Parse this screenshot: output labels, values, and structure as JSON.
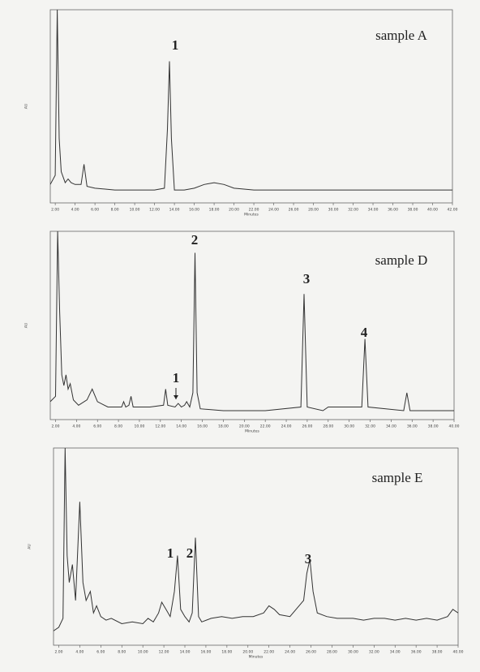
{
  "chart_data": [
    {
      "type": "line",
      "title": "sample A",
      "xlabel": "Minutes",
      "ylabel": "AU",
      "color": "#333333",
      "xlim": [
        1.5,
        42
      ],
      "ylim": [
        -0.05,
        1.0
      ],
      "xticks": [
        {
          "value": 2,
          "label": "2.00"
        },
        {
          "value": 4,
          "label": "4.00"
        },
        {
          "value": 6,
          "label": "6.00"
        },
        {
          "value": 8,
          "label": "8.00"
        },
        {
          "value": 10,
          "label": "10.00"
        },
        {
          "value": 12,
          "label": "12.00"
        },
        {
          "value": 14,
          "label": "14.00"
        },
        {
          "value": 16,
          "label": "16.00"
        },
        {
          "value": 18,
          "label": "18.00"
        },
        {
          "value": 20,
          "label": "20.00"
        },
        {
          "value": 22,
          "label": "22.00"
        },
        {
          "value": 24,
          "label": "24.00"
        },
        {
          "value": 26,
          "label": "26.00"
        },
        {
          "value": 28,
          "label": "28.00"
        },
        {
          "value": 30,
          "label": "30.00"
        },
        {
          "value": 32,
          "label": "32.00"
        },
        {
          "value": 34,
          "label": "34.00"
        },
        {
          "value": 36,
          "label": "36.00"
        },
        {
          "value": 38,
          "label": "38.00"
        },
        {
          "value": 40,
          "label": "40.00"
        },
        {
          "value": 42,
          "label": "42.00"
        }
      ],
      "x": [
        1.5,
        2.0,
        2.2,
        2.4,
        2.6,
        3.0,
        3.3,
        3.6,
        4.0,
        4.6,
        4.9,
        5.2,
        6,
        8,
        10,
        12,
        13.0,
        13.3,
        13.5,
        13.7,
        14.0,
        15,
        16,
        17,
        18,
        19,
        20,
        22,
        26,
        30,
        34,
        38,
        42
      ],
      "values": [
        0.05,
        0.1,
        1.0,
        0.3,
        0.12,
        0.06,
        0.08,
        0.06,
        0.05,
        0.05,
        0.16,
        0.04,
        0.03,
        0.02,
        0.02,
        0.02,
        0.03,
        0.35,
        0.72,
        0.3,
        0.02,
        0.02,
        0.03,
        0.05,
        0.06,
        0.05,
        0.03,
        0.02,
        0.02,
        0.02,
        0.02,
        0.02,
        0.02
      ],
      "annotations": [
        "1"
      ]
    },
    {
      "type": "line",
      "title": "sample D",
      "xlabel": "Minutes",
      "ylabel": "AU",
      "color": "#333333",
      "xlim": [
        1.5,
        40
      ],
      "ylim": [
        -0.05,
        1.0
      ],
      "xticks": [
        {
          "value": 2,
          "label": "2.00"
        },
        {
          "value": 4,
          "label": "4.00"
        },
        {
          "value": 6,
          "label": "6.00"
        },
        {
          "value": 8,
          "label": "8.00"
        },
        {
          "value": 10,
          "label": "10.00"
        },
        {
          "value": 12,
          "label": "12.00"
        },
        {
          "value": 14,
          "label": "14.00"
        },
        {
          "value": 16,
          "label": "16.00"
        },
        {
          "value": 18,
          "label": "18.00"
        },
        {
          "value": 20,
          "label": "20.00"
        },
        {
          "value": 22,
          "label": "22.00"
        },
        {
          "value": 24,
          "label": "24.00"
        },
        {
          "value": 26,
          "label": "26.00"
        },
        {
          "value": 28,
          "label": "28.00"
        },
        {
          "value": 30,
          "label": "30.00"
        },
        {
          "value": 32,
          "label": "32.00"
        },
        {
          "value": 34,
          "label": "34.00"
        },
        {
          "value": 36,
          "label": "36.00"
        },
        {
          "value": 38,
          "label": "38.00"
        },
        {
          "value": 40,
          "label": "40.00"
        }
      ],
      "x": [
        1.5,
        2.0,
        2.2,
        2.4,
        2.6,
        2.8,
        3.0,
        3.2,
        3.4,
        3.7,
        4.2,
        5.0,
        5.5,
        6.0,
        7,
        8.3,
        8.5,
        8.7,
        9.0,
        9.2,
        9.4,
        11,
        12.3,
        12.5,
        12.7,
        13.4,
        13.7,
        14.0,
        14.3,
        14.5,
        14.8,
        15.1,
        15.3,
        15.5,
        15.8,
        18,
        22,
        25.4,
        25.7,
        26.0,
        27.5,
        28,
        31.2,
        31.5,
        31.8,
        35.2,
        35.5,
        35.8,
        40
      ],
      "values": [
        0.05,
        0.08,
        1.0,
        0.55,
        0.2,
        0.14,
        0.2,
        0.12,
        0.15,
        0.06,
        0.03,
        0.06,
        0.12,
        0.05,
        0.02,
        0.02,
        0.05,
        0.02,
        0.03,
        0.08,
        0.02,
        0.02,
        0.03,
        0.12,
        0.03,
        0.02,
        0.04,
        0.02,
        0.03,
        0.05,
        0.02,
        0.1,
        0.88,
        0.1,
        0.01,
        0.0,
        0.0,
        0.02,
        0.65,
        0.02,
        0.0,
        0.02,
        0.02,
        0.4,
        0.02,
        0.0,
        0.1,
        0.0,
        0.0
      ],
      "annotations": [
        "2",
        "3",
        "4",
        "1"
      ]
    },
    {
      "type": "line",
      "title": "sample E",
      "xlabel": "Minutes",
      "ylabel": "AU",
      "color": "#333333",
      "xlim": [
        1.5,
        40
      ],
      "ylim": [
        -0.1,
        1.0
      ],
      "xticks": [
        {
          "value": 2,
          "label": "2.00"
        },
        {
          "value": 4,
          "label": "4.00"
        },
        {
          "value": 6,
          "label": "6.00"
        },
        {
          "value": 8,
          "label": "8.00"
        },
        {
          "value": 10,
          "label": "10.00"
        },
        {
          "value": 12,
          "label": "12.00"
        },
        {
          "value": 14,
          "label": "14.00"
        },
        {
          "value": 16,
          "label": "16.00"
        },
        {
          "value": 18,
          "label": "18.00"
        },
        {
          "value": 20,
          "label": "20.00"
        },
        {
          "value": 22,
          "label": "22.00"
        },
        {
          "value": 24,
          "label": "24.00"
        },
        {
          "value": 26,
          "label": "26.00"
        },
        {
          "value": 28,
          "label": "28.00"
        },
        {
          "value": 30,
          "label": "30.00"
        },
        {
          "value": 32,
          "label": "32.00"
        },
        {
          "value": 34,
          "label": "34.00"
        },
        {
          "value": 36,
          "label": "36.00"
        },
        {
          "value": 38,
          "label": "38.00"
        },
        {
          "value": 40,
          "label": "40.00"
        }
      ],
      "x": [
        1.5,
        2.0,
        2.4,
        2.6,
        2.8,
        3.0,
        3.3,
        3.6,
        4.0,
        4.3,
        4.6,
        5.0,
        5.3,
        5.6,
        6.0,
        6.5,
        7,
        8,
        9,
        10,
        10.5,
        11,
        11.5,
        11.8,
        12.2,
        12.6,
        13.0,
        13.3,
        13.6,
        14.0,
        14.4,
        14.7,
        15.0,
        15.3,
        15.6,
        16.5,
        17.5,
        18.5,
        19.5,
        20.5,
        21.5,
        22.0,
        22.5,
        23,
        24,
        25.3,
        25.6,
        25.9,
        26.2,
        26.6,
        27.5,
        28.5,
        30,
        31,
        32,
        33,
        34,
        35,
        36,
        37,
        38,
        39,
        39.5,
        40
      ],
      "values": [
        -0.02,
        0.0,
        0.05,
        1.0,
        0.4,
        0.25,
        0.35,
        0.15,
        0.7,
        0.25,
        0.15,
        0.2,
        0.08,
        0.12,
        0.06,
        0.04,
        0.05,
        0.02,
        0.03,
        0.02,
        0.05,
        0.03,
        0.08,
        0.14,
        0.1,
        0.06,
        0.2,
        0.4,
        0.1,
        0.06,
        0.03,
        0.08,
        0.5,
        0.06,
        0.03,
        0.05,
        0.06,
        0.05,
        0.06,
        0.06,
        0.08,
        0.12,
        0.1,
        0.07,
        0.06,
        0.15,
        0.3,
        0.38,
        0.2,
        0.08,
        0.06,
        0.05,
        0.05,
        0.04,
        0.05,
        0.05,
        0.04,
        0.05,
        0.04,
        0.05,
        0.04,
        0.06,
        0.1,
        0.08
      ],
      "annotations": [
        "1",
        "2",
        "3"
      ]
    }
  ]
}
